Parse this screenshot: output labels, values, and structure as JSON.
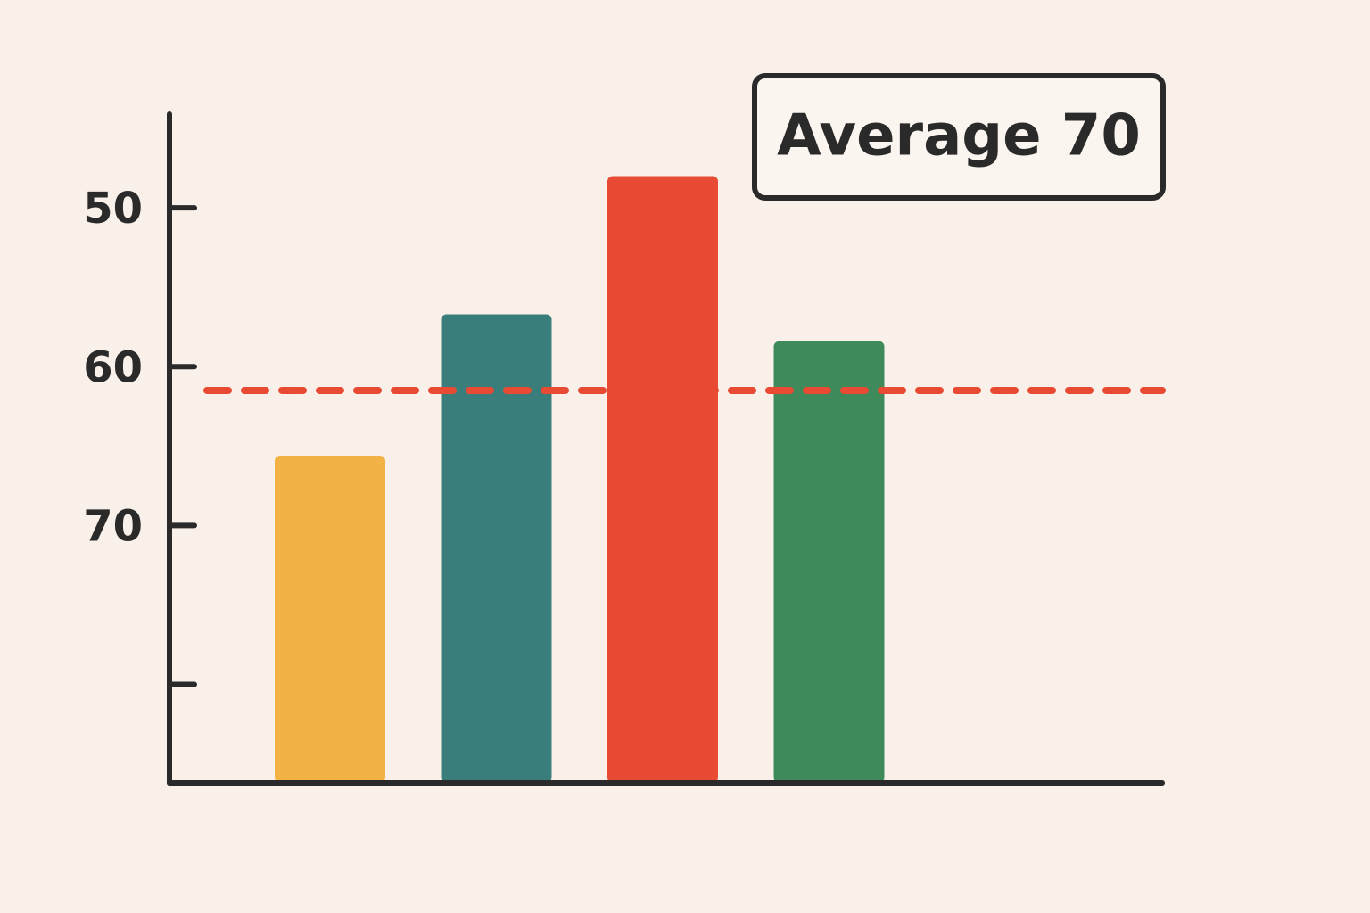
{
  "chart_data": {
    "type": "bar",
    "values": [
      65.6,
      56.7,
      48.0,
      58.4
    ],
    "colors": [
      "#f2b246",
      "#3a7e7b",
      "#e84a33",
      "#3f8a5a"
    ],
    "ylim": [
      86.2,
      44.1
    ],
    "yticks": [
      50,
      60,
      70,
      {
        "value": 80,
        "label": null
      }
    ],
    "reference_line": {
      "value": 61.5,
      "color": "#e84a33"
    },
    "annotation": "Average 70"
  }
}
